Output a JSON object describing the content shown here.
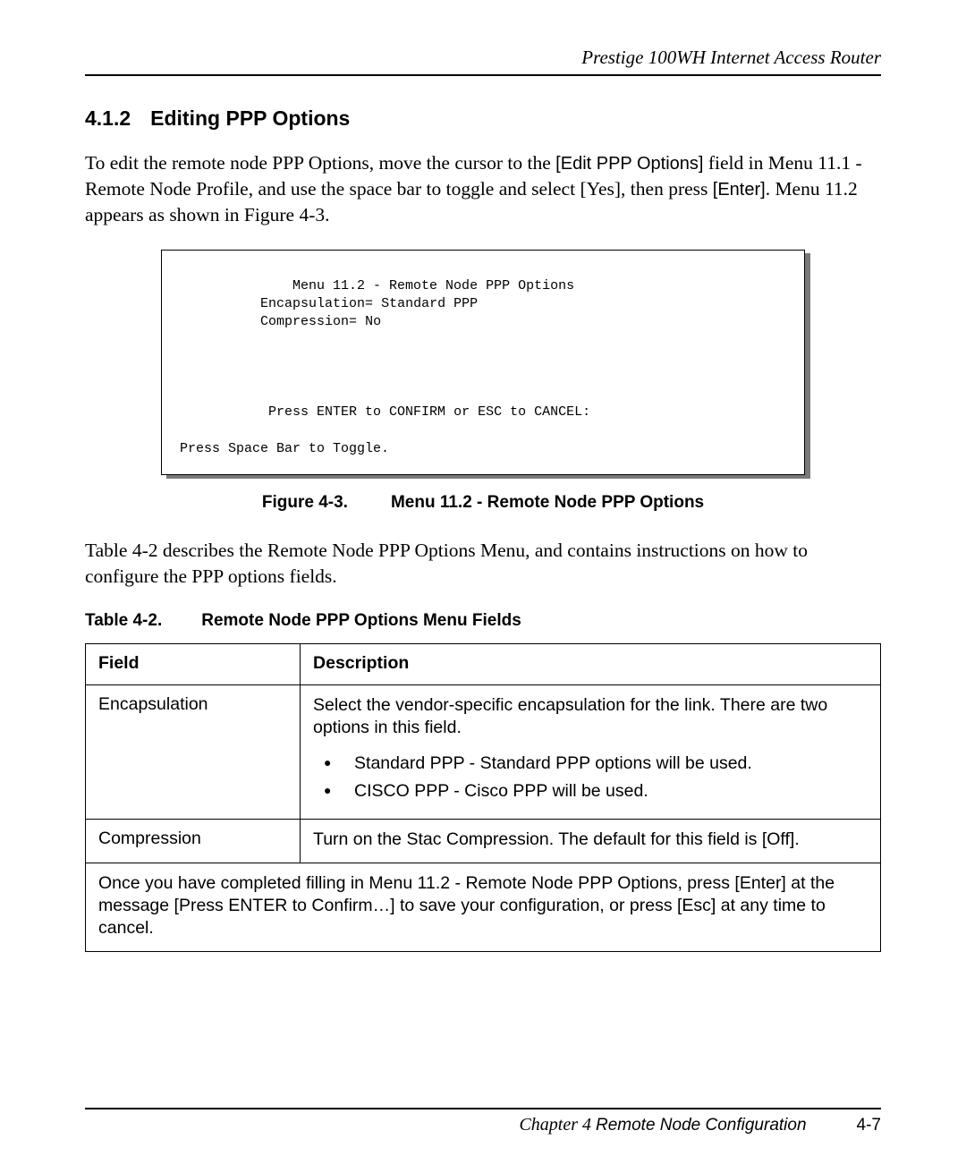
{
  "header": {
    "title_italic": "Prestige 100WH Internet Access Router"
  },
  "section": {
    "number": "4.1.2",
    "title": "Editing PPP Options"
  },
  "intro": {
    "run1": "To edit the remote node PPP Options, move the cursor to the ",
    "edit_field_sans": "[Edit PPP Options]",
    "run2": " field in Menu 11.1 - Remote Node Profile, and use the space bar to toggle and select [Yes], then press ",
    "enter_sans": "[Enter]",
    "run3": ". Menu 11.2 appears as shown in Figure 4-3."
  },
  "terminal": {
    "title": "Menu 11.2 - Remote Node PPP Options",
    "encaps_label": "Encapsulation=",
    "encaps_value": "Standard PPP",
    "compress_label": "Compression=",
    "compress_value": "No",
    "confirm_line": "Press ENTER to CONFIRM or ESC to CANCEL:",
    "toggle_line": "Press Space Bar to Toggle."
  },
  "figure_caption": {
    "label": "Figure 4-3.",
    "text": "Menu 11.2 - Remote Node PPP Options"
  },
  "between_para": "Table 4-2 describes the Remote Node PPP Options Menu, and contains instructions on how to configure the PPP options fields.",
  "table_caption": {
    "label": "Table 4-2.",
    "text": "Remote Node PPP Options Menu Fields"
  },
  "table": {
    "columns": {
      "field": "Field",
      "description": "Description"
    },
    "rows": [
      {
        "field": "Encapsulation",
        "desc_intro": "Select the vendor-specific encapsulation for the link. There are two options in this field.",
        "bullets": [
          "Standard PPP - Standard PPP options will be used.",
          "CISCO PPP - Cisco PPP will be used."
        ]
      },
      {
        "field": "Compression",
        "desc_intro": "Turn on the Stac Compression. The default for this field is [Off].",
        "bullets": []
      }
    ],
    "note": "Once you have completed filling in Menu 11.2 - Remote Node PPP Options, press [Enter] at the message [Press ENTER to Confirm…] to save your configuration, or press [Esc] at any time to cancel."
  },
  "footer": {
    "chapter_italic": "Chapter 4 ",
    "chapter_sans": "Remote Node Configuration",
    "page_num": "4-7"
  },
  "style": {
    "font_body": "Times New Roman",
    "font_sans": "Arial",
    "font_mono": "Courier New",
    "text_color": "#000000",
    "background": "#ffffff",
    "terminal_shadow": "#7a7a7a",
    "border_color": "#000000"
  }
}
